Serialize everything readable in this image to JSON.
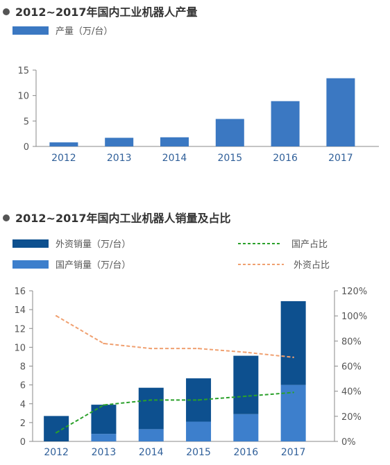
{
  "colors": {
    "bar_primary": "#3b78c2",
    "bar_foreign": "#0d508f",
    "bar_domestic": "#3d7fcc",
    "line_domestic_share": "#2aa02a",
    "line_foreign_share": "#f0a070",
    "axis": "#888888",
    "tick_label_left": "#555555",
    "tick_label_x": "#2f5f99",
    "bullet": "#555555"
  },
  "chart_data": [
    {
      "type": "bar",
      "title": "2012~2017年国内工业机器人产量",
      "categories": [
        "2012",
        "2013",
        "2014",
        "2015",
        "2016",
        "2017"
      ],
      "series": [
        {
          "name": "产量（万/台）",
          "values": [
            0.8,
            1.7,
            1.8,
            5.4,
            8.9,
            13.4
          ]
        }
      ],
      "ylim": [
        0,
        15
      ],
      "yticks": [
        "0",
        "5",
        "10",
        "15"
      ],
      "legend": "top-left",
      "grid": false
    },
    {
      "type": "bar",
      "title": "2012~2017年国内工业机器人销量及占比",
      "categories": [
        "2012",
        "2013",
        "2014",
        "2015",
        "2016",
        "2017"
      ],
      "series": [
        {
          "name": "外资销量（万/台）",
          "kind": "stacked-bar",
          "values": [
            2.7,
            3.1,
            4.4,
            4.6,
            6.2,
            8.9
          ]
        },
        {
          "name": "国产销量（万/台）",
          "kind": "stacked-bar",
          "values": [
            0.0,
            0.8,
            1.3,
            2.1,
            2.9,
            6.0
          ]
        },
        {
          "name": "国产占比",
          "kind": "line",
          "axis": "right",
          "style": "dashed",
          "values": [
            7,
            29,
            33,
            33,
            36,
            39
          ]
        },
        {
          "name": "外资占比",
          "kind": "line",
          "axis": "right",
          "style": "dashed",
          "values": [
            100,
            78,
            74,
            74,
            71,
            67
          ]
        }
      ],
      "ylim": [
        0,
        16
      ],
      "yticks": [
        "0",
        "2",
        "4",
        "6",
        "8",
        "10",
        "12",
        "14",
        "16"
      ],
      "y2lim": [
        0,
        120
      ],
      "y2ticks": [
        "0%",
        "20%",
        "40%",
        "60%",
        "80%",
        "100%",
        "120%"
      ],
      "legend": "top",
      "grid": false
    }
  ]
}
